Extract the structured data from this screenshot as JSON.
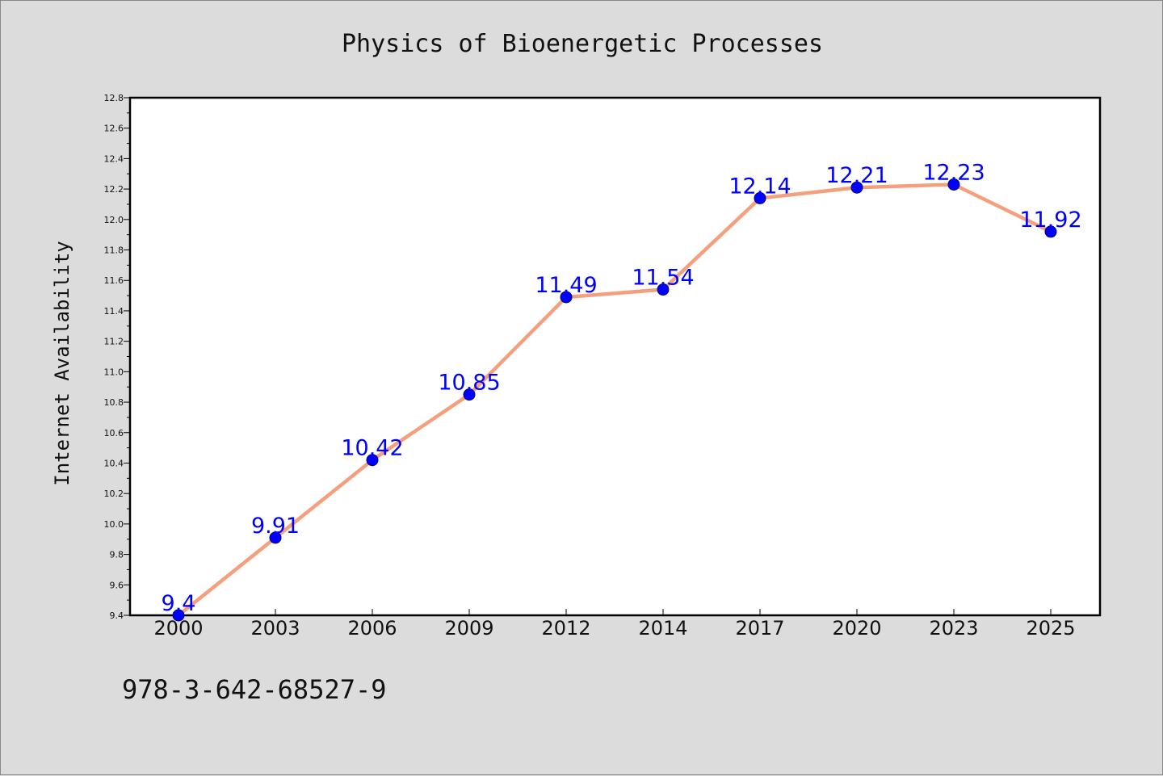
{
  "chart_data": {
    "type": "line",
    "title": "Physics of Bioenergetic Processes",
    "xlabel": "",
    "ylabel": "Internet Availability",
    "categories": [
      "2000",
      "2003",
      "2006",
      "2009",
      "2012",
      "2014",
      "2017",
      "2020",
      "2023",
      "2025"
    ],
    "series": [
      {
        "values": [
          9.4,
          9.91,
          10.42,
          10.85,
          11.49,
          11.54,
          12.14,
          12.21,
          12.23,
          11.92
        ]
      }
    ],
    "data_labels": [
      "9.4",
      "9.91",
      "10.42",
      "10.85",
      "11.49",
      "11.54",
      "12.14",
      "12.21",
      "12.23",
      "11.92"
    ],
    "ylim": [
      9.4,
      12.8
    ],
    "yticks": [
      "9.4",
      "9.6",
      "9.8",
      "10.0",
      "10.2",
      "10.4",
      "10.6",
      "10.8",
      "11.0",
      "11.2",
      "11.4",
      "11.6",
      "11.8",
      "12.0",
      "12.2",
      "12.4",
      "12.6",
      "12.8"
    ],
    "grid": false,
    "line_color": "#f4a07f",
    "marker_color": "#0000ff",
    "label_color": "#0000ff"
  },
  "footer": {
    "isbn": "978-3-642-68527-9"
  }
}
